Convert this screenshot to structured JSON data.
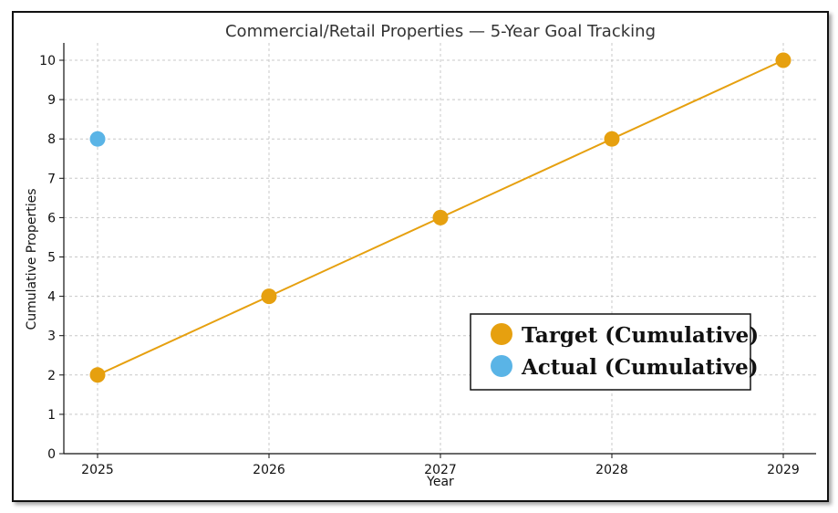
{
  "chart_data": {
    "type": "line",
    "title": "Commercial/Retail Properties — 5-Year Goal Tracking",
    "xlabel": "Year",
    "ylabel": "Cumulative Properties",
    "x": [
      2025,
      2026,
      2027,
      2028,
      2029
    ],
    "x_ticks": [
      "2025",
      "2026",
      "2027",
      "2028",
      "2029"
    ],
    "y_ticks": [
      "0",
      "1",
      "2",
      "3",
      "4",
      "5",
      "6",
      "7",
      "8",
      "9",
      "10"
    ],
    "ylim": [
      0,
      10
    ],
    "grid": true,
    "legend_position": "lower-right",
    "series": [
      {
        "name": "Target (Cumulative)",
        "x": [
          2025,
          2026,
          2027,
          2028,
          2029
        ],
        "values": [
          2,
          4,
          6,
          8,
          10
        ],
        "color": "#e6a00f",
        "style": "line-markers"
      },
      {
        "name": "Actual (Cumulative)",
        "x": [
          2025
        ],
        "values": [
          8
        ],
        "color": "#5ab4e6",
        "style": "markers"
      }
    ]
  }
}
